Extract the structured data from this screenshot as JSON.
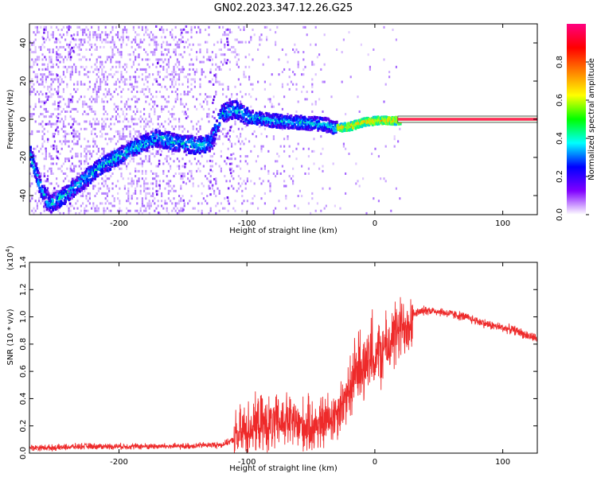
{
  "figure_title": "GN02.2023.347.12.26.G25",
  "chart_data": [
    {
      "type": "heatmap",
      "xlabel": "Height of straight line (km)",
      "ylabel": "Frequency (Hz)",
      "xlim": [
        -270,
        127
      ],
      "ylim": [
        -50,
        50
      ],
      "xticks": [
        -200,
        -100,
        0,
        100
      ],
      "xtick_labels": [
        "-200",
        "-100",
        "0",
        "100"
      ],
      "yticks": [
        -40,
        -20,
        0,
        20,
        40
      ],
      "ytick_labels": [
        "-40",
        "-20",
        "0",
        "20",
        "40"
      ],
      "colorbar": {
        "label": "Normalized spectral amplitude",
        "range": [
          0,
          1
        ],
        "ticks": [
          0,
          0.2,
          0.4,
          0.6,
          0.8
        ],
        "tick_labels": [
          "0.0",
          "0.2",
          "0.4",
          "0.6",
          "0.8"
        ],
        "colormap": "hsv-like",
        "stops": [
          "#ffffff",
          "#8000ff",
          "#0000ff",
          "#00ffff",
          "#00ff00",
          "#ffff00",
          "#ff8000",
          "#ff0000",
          "#ff0080"
        ]
      },
      "ridge": {
        "description_points_x": [
          -270,
          -262,
          -255,
          -245,
          -230,
          -215,
          -200,
          -185,
          -170,
          -160,
          -150,
          -140,
          -130,
          -120,
          -110,
          -100,
          -80,
          -60,
          -40,
          -30,
          -20,
          -10,
          0,
          10,
          20,
          127
        ],
        "description_points_y": [
          -18,
          -35,
          -44,
          -40,
          -32,
          -24,
          -18,
          -13,
          -9,
          -11,
          -12,
          -13,
          -12,
          4,
          6,
          2,
          0,
          -1,
          -2,
          -4,
          -3,
          -1,
          0,
          0,
          0,
          0
        ],
        "note": ""
      },
      "grid": false
    },
    {
      "type": "line",
      "xlabel": "Height of straight line (km)",
      "ylabel": "SNR (10 * v/v)",
      "yscale_label": "(x10",
      "yscale_exponent": "4",
      "yscale_suffix": ")",
      "xlim": [
        -270,
        127
      ],
      "ylim": [
        0,
        1.4
      ],
      "xticks": [
        -200,
        -100,
        0,
        100
      ],
      "xtick_labels": [
        "-200",
        "-100",
        "0",
        "100"
      ],
      "yticks": [
        0,
        0.2,
        0.4,
        0.6,
        0.8,
        1.0,
        1.2,
        1.4
      ],
      "ytick_labels": [
        "0.0",
        "0.2",
        "0.4",
        "0.6",
        "0.8",
        "1.0",
        "1.2",
        "1.4"
      ],
      "series": [
        {
          "color": "#ee2a2a",
          "x": [
            -270,
            -250,
            -230,
            -210,
            -190,
            -170,
            -150,
            -130,
            -120,
            -110,
            -100,
            -90,
            -80,
            -70,
            -60,
            -50,
            -40,
            -30,
            -20,
            -15,
            -10,
            -5,
            0,
            5,
            10,
            15,
            20,
            30,
            40,
            50,
            60,
            70,
            80,
            90,
            100,
            110,
            120,
            127
          ],
          "y": [
            0.04,
            0.04,
            0.05,
            0.05,
            0.05,
            0.05,
            0.05,
            0.06,
            0.06,
            0.1,
            0.18,
            0.22,
            0.2,
            0.24,
            0.2,
            0.2,
            0.22,
            0.3,
            0.45,
            0.6,
            0.65,
            0.65,
            0.68,
            0.75,
            0.78,
            0.85,
            0.9,
            1.02,
            1.05,
            1.04,
            1.02,
            1.0,
            0.97,
            0.94,
            0.92,
            0.9,
            0.86,
            0.84
          ]
        }
      ],
      "grid": false
    }
  ]
}
